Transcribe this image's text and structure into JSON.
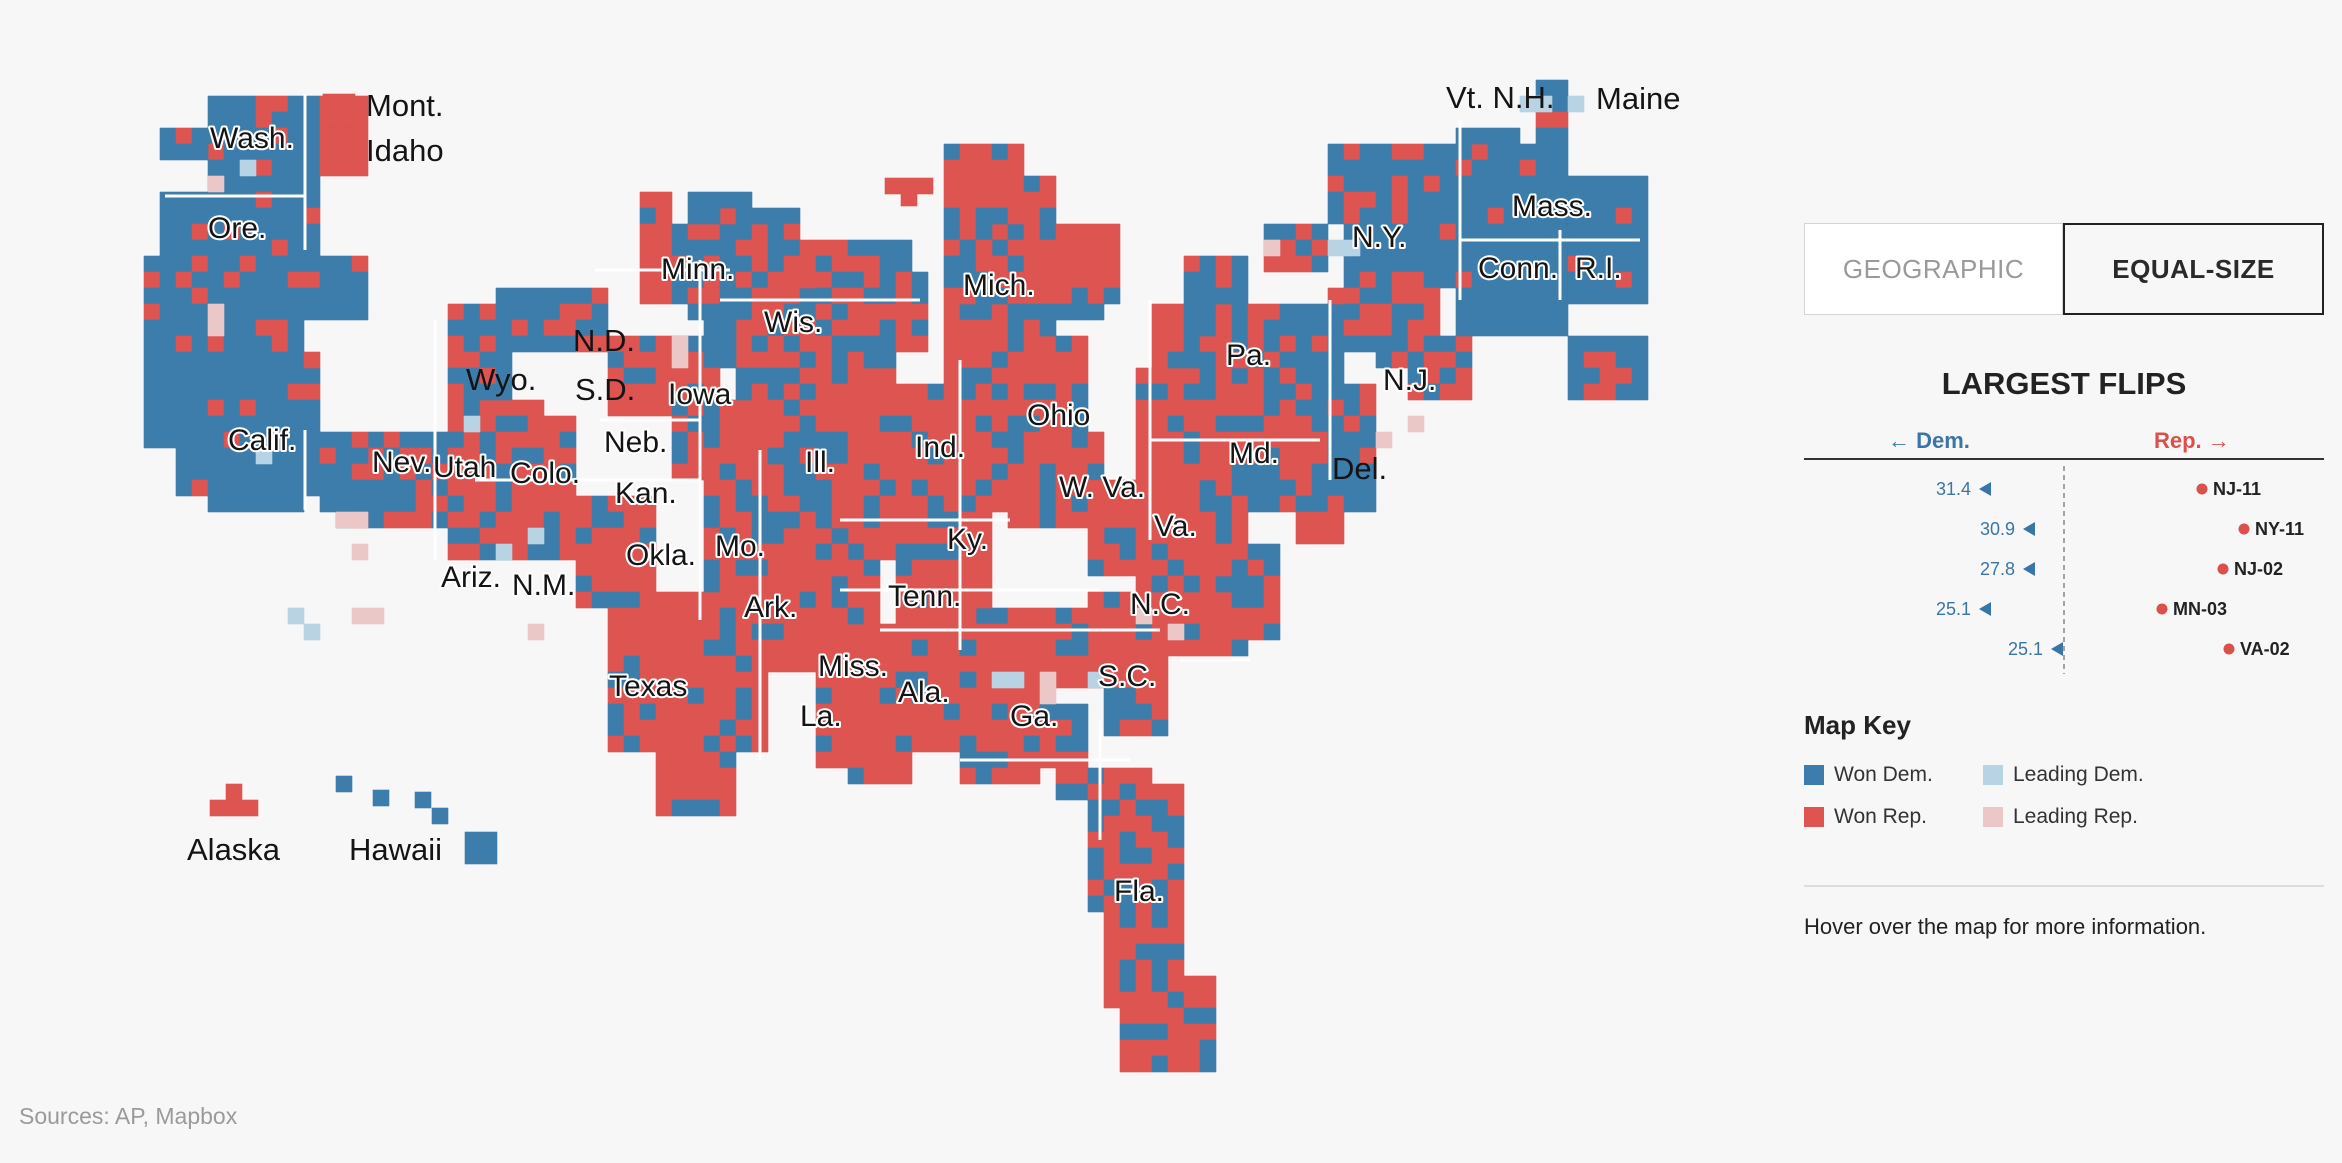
{
  "toggle": {
    "geographic_label": "GEOGRAPHIC",
    "equal_size_label": "EQUAL-SIZE",
    "selected": "EQUAL-SIZE"
  },
  "flips": {
    "title": "LARGEST FLIPS",
    "dem_label": "← Dem.",
    "rep_label": "Rep. →",
    "items": [
      {
        "district": "NJ-11",
        "value": "31.4",
        "shift": 31.4
      },
      {
        "district": "NY-11",
        "value": "30.9",
        "shift": 30.9
      },
      {
        "district": "NJ-02",
        "value": "27.8",
        "shift": 27.8
      },
      {
        "district": "MN-03",
        "value": "25.1",
        "shift": 25.1
      },
      {
        "district": "VA-02",
        "value": "25.1",
        "shift": 25.1
      }
    ]
  },
  "map_key": {
    "title": "Map Key",
    "items": [
      {
        "label": "Won Dem.",
        "color": "#3d7dab"
      },
      {
        "label": "Leading Dem.",
        "color": "#b7d3e4"
      },
      {
        "label": "Won Rep.",
        "color": "#dd5450"
      },
      {
        "label": "Leading Rep.",
        "color": "#ecc7c7"
      }
    ]
  },
  "hover_note": "Hover over the map for more information.",
  "sources": "Sources: AP, Mapbox",
  "map": {
    "labels": {
      "wash": "Wash.",
      "ore": "Ore.",
      "calif": "Calif.",
      "nev": "Nev.",
      "utah": "Utah",
      "colo": "Colo.",
      "ariz": "Ariz.",
      "nm": "N.M.",
      "wyo": "Wyo.",
      "mont": "Mont.",
      "idaho": "Idaho",
      "nd": "N.D.",
      "sd": "S.D.",
      "neb": "Neb.",
      "kan": "Kan.",
      "okla": "Okla.",
      "texas": "Texas",
      "minn": "Minn.",
      "iowa": "Iowa",
      "mo": "Mo.",
      "ark": "Ark.",
      "la": "La.",
      "wis": "Wis.",
      "ill": "Ill.",
      "mich": "Mich.",
      "ind": "Ind.",
      "ohio": "Ohio",
      "ky": "Ky.",
      "tenn": "Tenn.",
      "miss": "Miss.",
      "ala": "Ala.",
      "ga": "Ga.",
      "fla": "Fla.",
      "sc": "S.C.",
      "nc": "N.C.",
      "va": "Va.",
      "wva": "W. Va.",
      "md": "Md.",
      "del": "Del.",
      "pa": "Pa.",
      "nj": "N.J.",
      "ny": "N.Y.",
      "conn": "Conn.",
      "ri": "R.I.",
      "mass": "Mass.",
      "vt_nh": "Vt. N.H.",
      "maine": "Maine",
      "alaska": "Alaska",
      "hawaii": "Hawaii"
    }
  }
}
